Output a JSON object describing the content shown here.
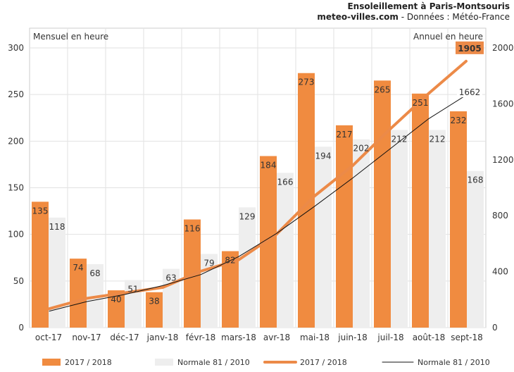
{
  "header": {
    "title": "Ensoleillement à Paris-Montsouris",
    "site": "meteo-villes.com",
    "source": " - Données : Météo-France"
  },
  "colors": {
    "current": "#F08B40",
    "current_line": "#EC8A48",
    "normal_bar": "#EEEEEE",
    "normal_line": "#111111",
    "grid": "#E2E2E2"
  },
  "chart_data": {
    "type": "bar",
    "categories": [
      "oct-17",
      "nov-17",
      "déc-17",
      "janv-18",
      "févr-18",
      "mars-18",
      "avr-18",
      "mai-18",
      "juin-18",
      "juil-18",
      "août-18",
      "sept-18"
    ],
    "left_axis_label": "Mensuel en heure",
    "right_axis_label": "Annuel en heure",
    "left_ylim": [
      0,
      300
    ],
    "right_ylim": [
      0,
      2000
    ],
    "left_ticks": [
      0,
      50,
      100,
      150,
      200,
      250,
      300
    ],
    "right_ticks": [
      0,
      400,
      800,
      1200,
      1600,
      2000
    ],
    "grid": true,
    "series": [
      {
        "name": "2017 / 2018",
        "kind": "bar",
        "axis": "left",
        "color": "#F08B40",
        "values": [
          135,
          74,
          40,
          38,
          116,
          82,
          184,
          273,
          217,
          265,
          251,
          232
        ]
      },
      {
        "name": "Normale 81 / 2010",
        "kind": "bar",
        "axis": "left",
        "color": "#EEEEEE",
        "values": [
          118,
          68,
          51,
          63,
          79,
          129,
          166,
          194,
          202,
          212,
          212,
          168
        ]
      },
      {
        "name": "2017 / 2018",
        "kind": "line",
        "axis": "right",
        "color": "#EC8A48",
        "values": [
          135,
          209,
          249,
          287,
          403,
          485,
          669,
          942,
          1159,
          1424,
          1675,
          1905
        ],
        "end_label": "1905"
      },
      {
        "name": "Normale 81 / 2010",
        "kind": "line",
        "axis": "right",
        "color": "#111111",
        "values": [
          118,
          186,
          237,
          300,
          379,
          508,
          674,
          868,
          1070,
          1282,
          1494,
          1662
        ],
        "end_label": "1662"
      }
    ],
    "legend_position": "bottom"
  }
}
